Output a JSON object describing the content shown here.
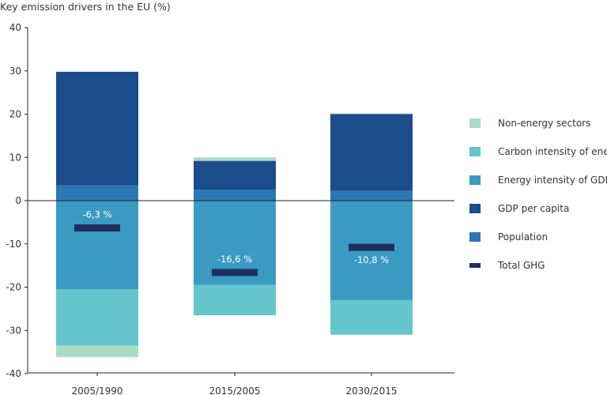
{
  "chart_data": {
    "type": "bar",
    "stacked": true,
    "title": "Key emission drivers in the EU (%)",
    "xlabel": "",
    "ylabel": "",
    "ylim": [
      -40,
      40
    ],
    "yticks": [
      40,
      30,
      20,
      10,
      0,
      -10,
      -20,
      -30,
      -40
    ],
    "categories": [
      "2005/1990",
      "2015/2005",
      "2030/2015"
    ],
    "series": [
      {
        "name": "Population",
        "color": "#2c77b3",
        "values": [
          3.5,
          2.5,
          2.3
        ]
      },
      {
        "name": "GDP per capita",
        "color": "#1b4c8c",
        "values": [
          26.3,
          6.7,
          17.7
        ]
      },
      {
        "name": "Energy intensity of GDP",
        "color": "#3a9ac2",
        "values": [
          -20.5,
          -19.5,
          -23.0
        ]
      },
      {
        "name": "Carbon intensity of energy",
        "color": "#65c5cc",
        "values": [
          -13.0,
          -7.0,
          -8.0
        ]
      },
      {
        "name": "Non-energy sectors",
        "color": "#a9dcc3",
        "values": [
          -2.7,
          0.8,
          0.2
        ]
      }
    ],
    "total_ghg": {
      "name": "Total GHG",
      "color": "#1e2f5e",
      "values": [
        -6.3,
        -16.6,
        -10.8
      ],
      "labels": [
        "-6,3 %",
        "-16,6 %",
        "-10,8 %"
      ]
    },
    "legend_order": [
      "Non-energy sectors",
      "Carbon intensity of energy",
      "Energy intensity of GDP",
      "GDP per capita",
      "Population",
      "Total GHG"
    ],
    "legend_position": "right",
    "grid": false
  }
}
